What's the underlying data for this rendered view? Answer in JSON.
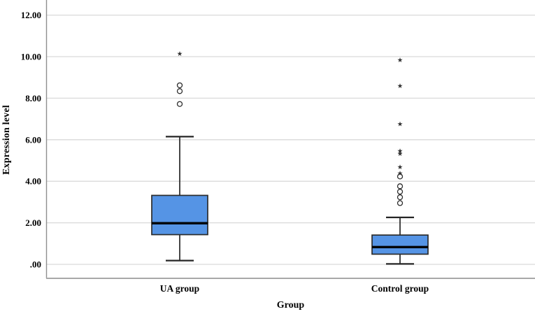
{
  "figure": {
    "background": "#ffffff"
  },
  "chart_data": {
    "type": "boxplot",
    "title": "",
    "xlabel": "Group",
    "ylabel": "Expression level",
    "categories": [
      "UA group",
      "Control group"
    ],
    "ytick_labels": [
      ".00",
      "2.00",
      "4.00",
      "6.00",
      "8.00",
      "10.00",
      "12.00"
    ],
    "ytick_values": [
      0,
      2,
      4,
      6,
      8,
      10,
      12
    ],
    "ylim": [
      -0.7,
      12.7
    ],
    "grid": true,
    "legend": "none",
    "series": [
      {
        "name": "UA group",
        "whisker_low": 0.18,
        "q1": 1.43,
        "median": 1.98,
        "q3": 3.32,
        "whisker_high": 6.15,
        "outliers": [
          7.72,
          8.34,
          8.62
        ],
        "extremes": [
          10.15
        ]
      },
      {
        "name": "Control group",
        "whisker_low": 0.02,
        "q1": 0.49,
        "median": 0.83,
        "q3": 1.41,
        "whisker_high": 2.26,
        "outliers": [
          2.95,
          3.23,
          3.5,
          3.76,
          4.23
        ],
        "extremes": [
          4.39,
          4.7,
          5.34,
          5.47,
          6.77,
          8.6,
          9.84
        ]
      }
    ],
    "colors": {
      "box_fill": "#5594E5",
      "box_border": "#2b2b2b",
      "median": "#000000",
      "whisker": "#262626",
      "gridline": "#d9d9d9",
      "axis_y": "#8f8f8f",
      "axis_x": "#a8a8a8",
      "marker": "#2e2e2e",
      "text": "#000000"
    }
  }
}
